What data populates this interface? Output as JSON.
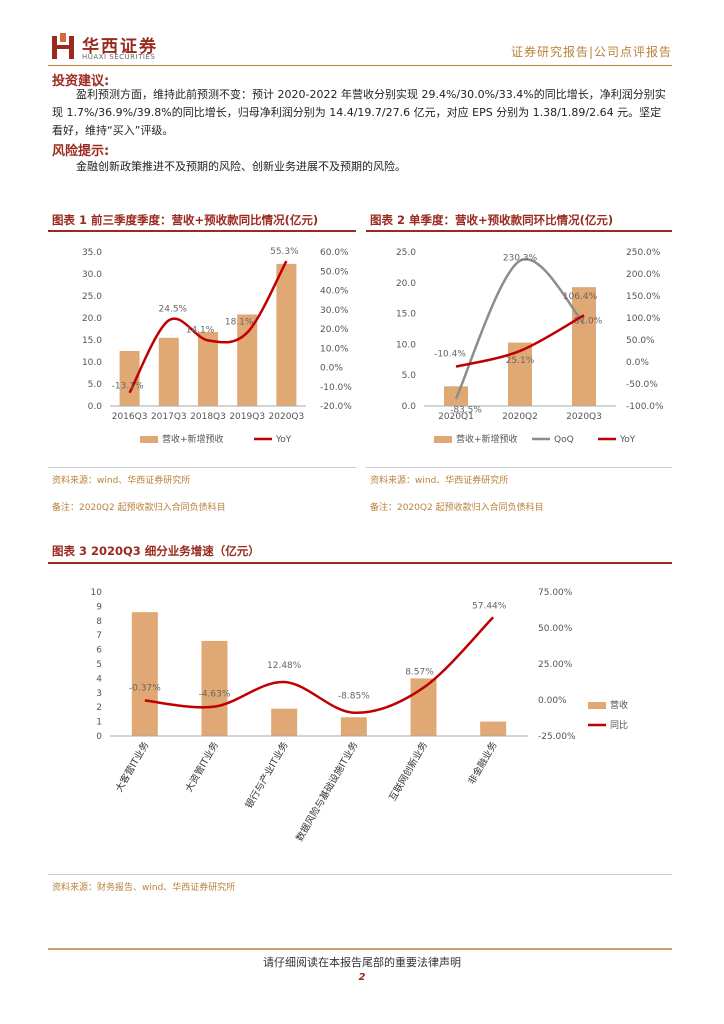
{
  "header": {
    "logo_cn": "华西证券",
    "logo_en": "HUAXI SECURITIES",
    "report_type": "证券研究报告|公司点评报告"
  },
  "invest": {
    "heading": "投资建议:",
    "text": "盈利预测方面，维持此前预测不变：预计 2020-2022 年营收分别实现 29.4%/30.0%/33.4%的同比增长，净利润分别实现 1.7%/36.9%/39.8%的同比增长，归母净利润分别为 14.4/19.7/27.6 亿元，对应 EPS 分别为 1.38/1.89/2.64 元。坚定看好，维持“买入”评级。"
  },
  "risk": {
    "heading": "风险提示:",
    "text": "金融创新政策推进不及预期的风险、创新业务进展不及预期的风险。"
  },
  "fig1": {
    "title": "图表 1  前三季度季度：营收+预收款同比情况(亿元)",
    "source": "资料来源：wind、华西证券研究所",
    "note": "备注：2020Q2 起预收款归入合同负债科目"
  },
  "fig2": {
    "title": "图表 2  单季度：营收+预收款同环比情况(亿元)",
    "source": "资料来源：wind、华西证券研究所",
    "note": "备注：2020Q2 起预收款归入合同负债科目"
  },
  "fig3": {
    "title": "图表 3  2020Q3 细分业务增速（亿元）",
    "source": "资料来源：财务报告、wind、华西证券研究所"
  },
  "chart_data": [
    {
      "type": "bar",
      "categories": [
        "2016Q3",
        "2017Q3",
        "2018Q3",
        "2019Q3",
        "2020Q3"
      ],
      "series": [
        {
          "name": "营收+新增预收",
          "values": [
            12.5,
            15.5,
            16.8,
            20.8,
            32.3
          ]
        },
        {
          "name": "YoY",
          "type": "line",
          "axis": "right",
          "values": [
            -13.1,
            24.5,
            14.1,
            18.1,
            55.3
          ],
          "labels": [
            "-13.1%",
            "24.5%",
            "14.1%",
            "18.1%",
            "55.3%"
          ]
        }
      ],
      "ylim": [
        0,
        35
      ],
      "yticks": [
        "0.0",
        "5.0",
        "10.0",
        "15.0",
        "20.0",
        "25.0",
        "30.0",
        "35.0"
      ],
      "y2lim": [
        -20,
        60
      ],
      "y2ticks": [
        "-20.0%",
        "-10.0%",
        "0.0%",
        "10.0%",
        "20.0%",
        "30.0%",
        "40.0%",
        "50.0%",
        "60.0%"
      ],
      "colors": {
        "bar": "#e0a874",
        "line": "#c00000"
      },
      "legend": "bottom"
    },
    {
      "type": "bar",
      "categories": [
        "2020Q1",
        "2020Q2",
        "2020Q3"
      ],
      "series": [
        {
          "name": "营收+新增预收",
          "values": [
            3.2,
            10.3,
            19.3
          ]
        },
        {
          "name": "QoQ",
          "type": "line",
          "axis": "right",
          "values": [
            -83.5,
            230.3,
            87.0
          ],
          "labels": [
            "-83.5%",
            "230.3%",
            "87.0%"
          ]
        },
        {
          "name": "YoY",
          "type": "line",
          "axis": "right",
          "values": [
            -10.4,
            25.1,
            106.4
          ],
          "labels": [
            "-10.4%",
            "25.1%",
            "106.4%"
          ]
        }
      ],
      "ylim": [
        0,
        25
      ],
      "yticks": [
        "0.0",
        "5.0",
        "10.0",
        "15.0",
        "20.0",
        "25.0"
      ],
      "y2lim": [
        -100,
        250
      ],
      "y2ticks": [
        "-100.0%",
        "-50.0%",
        "0.0%",
        "50.0%",
        "100.0%",
        "150.0%",
        "200.0%",
        "250.0%"
      ],
      "colors": {
        "bar": "#e0a874",
        "qoq": "#8c8c8c",
        "yoy": "#c00000"
      },
      "legend": "bottom"
    },
    {
      "type": "bar",
      "categories": [
        "大客营IT业务",
        "大资管IT业务",
        "银行与产业IT业务",
        "数据风险与基础设施IT业务",
        "互联网创新业务",
        "非金融业务"
      ],
      "series": [
        {
          "name": "营收",
          "values": [
            8.6,
            6.6,
            1.9,
            1.3,
            4.0,
            1.0
          ]
        },
        {
          "name": "同比",
          "type": "line",
          "axis": "right",
          "values": [
            -0.37,
            -4.63,
            12.48,
            -8.85,
            8.57,
            57.44
          ],
          "labels": [
            "-0.37%",
            "-4.63%",
            "12.48%",
            "-8.85%",
            "8.57%",
            "57.44%"
          ]
        }
      ],
      "ylim": [
        0,
        10
      ],
      "yticks": [
        "0",
        "1",
        "2",
        "3",
        "4",
        "5",
        "6",
        "7",
        "8",
        "9",
        "10"
      ],
      "y2lim": [
        -25,
        75
      ],
      "y2ticks": [
        "-25.00%",
        "0.00%",
        "25.00%",
        "50.00%",
        "75.00%"
      ],
      "colors": {
        "bar": "#e0a874",
        "line": "#c00000"
      },
      "legend": "right"
    }
  ],
  "footer": {
    "note": "请仔细阅读在本报告尾部的重要法律声明",
    "page": "2"
  }
}
